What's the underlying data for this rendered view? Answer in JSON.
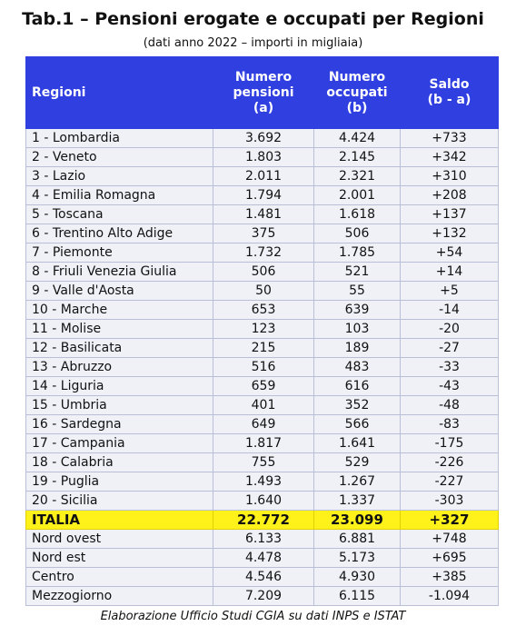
{
  "header": {
    "title": "Tab.1 – Pensioni erogate e occupati per Regioni",
    "subtitle": "(dati anno 2022 – importi in migliaia)"
  },
  "table": {
    "columns": [
      "Regioni",
      "Numero\npensioni\n(a)",
      "Numero\noccupati\n(b)",
      "Saldo\n(b - a)"
    ],
    "rows": [
      [
        "1 - Lombardia",
        "3.692",
        "4.424",
        "+733"
      ],
      [
        "2 - Veneto",
        "1.803",
        "2.145",
        "+342"
      ],
      [
        "3 - Lazio",
        "2.011",
        "2.321",
        "+310"
      ],
      [
        "4 - Emilia Romagna",
        "1.794",
        "2.001",
        "+208"
      ],
      [
        "5 - Toscana",
        "1.481",
        "1.618",
        "+137"
      ],
      [
        "6 - Trentino Alto Adige",
        "375",
        "506",
        "+132"
      ],
      [
        "7 - Piemonte",
        "1.732",
        "1.785",
        "+54"
      ],
      [
        "8 - Friuli Venezia Giulia",
        "506",
        "521",
        "+14"
      ],
      [
        "9 - Valle d'Aosta",
        "50",
        "55",
        "+5"
      ],
      [
        "10 - Marche",
        "653",
        "639",
        "-14"
      ],
      [
        "11 - Molise",
        "123",
        "103",
        "-20"
      ],
      [
        "12 - Basilicata",
        "215",
        "189",
        "-27"
      ],
      [
        "13 - Abruzzo",
        "516",
        "483",
        "-33"
      ],
      [
        "14 - Liguria",
        "659",
        "616",
        "-43"
      ],
      [
        "15 - Umbria",
        "401",
        "352",
        "-48"
      ],
      [
        "16 - Sardegna",
        "649",
        "566",
        "-83"
      ],
      [
        "17 - Campania",
        "1.817",
        "1.641",
        "-175"
      ],
      [
        "18 - Calabria",
        "755",
        "529",
        "-226"
      ],
      [
        "19 - Puglia",
        "1.493",
        "1.267",
        "-227"
      ],
      [
        "20 - Sicilia",
        "1.640",
        "1.337",
        "-303"
      ]
    ],
    "total": [
      "ITALIA",
      "22.772",
      "23.099",
      "+327"
    ],
    "areas": [
      [
        "Nord ovest",
        "6.133",
        "6.881",
        "+748"
      ],
      [
        "Nord est",
        "4.478",
        "5.173",
        "+695"
      ],
      [
        "Centro",
        "4.546",
        "4.930",
        "+385"
      ],
      [
        "Mezzogiorno",
        "7.209",
        "6.115",
        "-1.094"
      ]
    ]
  },
  "footer": "Elaborazione Ufficio Studi CGIA su dati INPS e ISTAT"
}
